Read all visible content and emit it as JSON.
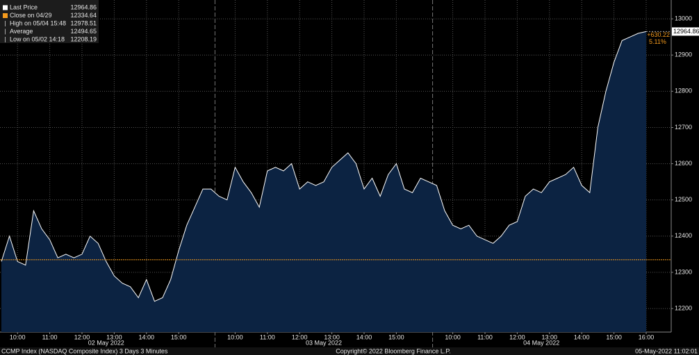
{
  "chart_data": {
    "type": "area",
    "categories": [
      null,
      null,
      "10:00",
      null,
      null,
      null,
      "11:00",
      null,
      null,
      null,
      "12:00",
      null,
      null,
      null,
      "13:00",
      null,
      null,
      null,
      "14:00",
      null,
      null,
      null,
      "15:00",
      null,
      null,
      null,
      null,
      null,
      null,
      "10:00",
      null,
      null,
      null,
      "11:00",
      null,
      null,
      null,
      "12:00",
      null,
      null,
      null,
      "13:00",
      null,
      null,
      null,
      "14:00",
      null,
      null,
      null,
      "15:00",
      null,
      null,
      null,
      null,
      null,
      null,
      "10:00",
      null,
      null,
      null,
      "11:00",
      null,
      null,
      null,
      "12:00",
      null,
      null,
      null,
      "13:00",
      null,
      null,
      null,
      "14:00",
      null,
      null,
      null,
      "15:00",
      null,
      null,
      null,
      "16:00"
    ],
    "values": [
      12330,
      12400,
      12330,
      12320,
      12470,
      12420,
      12390,
      12340,
      12350,
      12340,
      12350,
      12400,
      12380,
      12330,
      12290,
      12270,
      12260,
      12230,
      12280,
      12220,
      12230,
      12280,
      12360,
      12430,
      12480,
      12530,
      12530,
      12510,
      12500,
      12590,
      12550,
      12520,
      12480,
      12580,
      12590,
      12580,
      12600,
      12530,
      12550,
      12540,
      12550,
      12590,
      12610,
      12630,
      12600,
      12530,
      12560,
      12510,
      12570,
      12600,
      12530,
      12520,
      12560,
      12550,
      12540,
      12470,
      12430,
      12420,
      12430,
      12400,
      12390,
      12380,
      12400,
      12430,
      12440,
      12510,
      12530,
      12520,
      12550,
      12560,
      12570,
      12590,
      12540,
      12520,
      12700,
      12800,
      12880,
      12940,
      12950,
      12960,
      12964.86
    ],
    "days": [
      "02 May 2022",
      "03 May 2022",
      "04 May 2022"
    ],
    "color": "#ffffff",
    "fill": "#0c2342",
    "close_color": "#f59b1d",
    "ylim": [
      12135,
      13052
    ],
    "yticks": [
      12200,
      12300,
      12400,
      12500,
      12600,
      12700,
      12800,
      12900,
      13000
    ],
    "grid": true,
    "legend": [
      {
        "label": "Last Price",
        "value": 12964.86
      },
      {
        "label": "Close on 04/29",
        "value": 12334.64
      },
      {
        "label": "High on 05/04 15:48",
        "value": 12978.51
      },
      {
        "label": "Average",
        "value": 12494.65
      },
      {
        "label": "Low on 05/02 14:18",
        "value": 12208.19
      }
    ],
    "change": "+630.22",
    "change_pct": "5.11%",
    "footer": {
      "left": "CCMP Index (NASDAQ Composite Index) 3 Days 3 Minutes",
      "center": "Copyright© 2022 Bloomberg Finance L.P.",
      "right": "05-May-2022 11:02:01"
    }
  }
}
